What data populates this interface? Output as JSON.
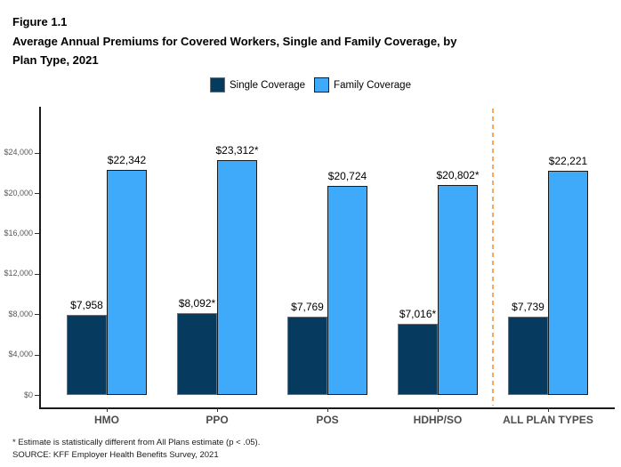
{
  "header": {
    "figure_label": "Figure 1.1",
    "title": "Average Annual Premiums for Covered Workers, Single and Family Coverage, by Plan Type, 2021"
  },
  "legend": {
    "items": [
      {
        "label": "Single Coverage",
        "color": "#063A5E",
        "border": "#6e6f72"
      },
      {
        "label": "Family Coverage",
        "color": "#3FA9FA",
        "border": "#1a1a1a"
      }
    ]
  },
  "chart_data": {
    "type": "bar",
    "title": "Average Annual Premiums for Covered Workers, Single and Family Coverage, by Plan Type, 2021",
    "categories": [
      "HMO",
      "PPO",
      "POS",
      "HDHP/SO",
      "ALL PLAN TYPES"
    ],
    "series": [
      {
        "name": "Single Coverage",
        "color": "#063A5E",
        "border": "#6e6f72",
        "values": [
          7958,
          8092,
          7769,
          7016,
          7739
        ],
        "labels": [
          "$7,958",
          "$8,092*",
          "$7,769",
          "$7,016*",
          "$7,739"
        ]
      },
      {
        "name": "Family Coverage",
        "color": "#3FA9FA",
        "border": "#1a1a1a",
        "values": [
          22342,
          23312,
          20724,
          20802,
          22221
        ],
        "labels": [
          "$22,342",
          "$23,312*",
          "$20,724",
          "$20,802*",
          "$22,221"
        ]
      }
    ],
    "y_ticks": [
      {
        "value": 0,
        "label": "$0"
      },
      {
        "value": 4000,
        "label": "$4,000"
      },
      {
        "value": 8000,
        "label": "$8,000"
      },
      {
        "value": 12000,
        "label": "$12,000"
      },
      {
        "value": 16000,
        "label": "$16,000"
      },
      {
        "value": 20000,
        "label": "$20,000"
      },
      {
        "value": 24000,
        "label": "$24,000"
      }
    ],
    "ylim": [
      0,
      28400
    ],
    "grid": false,
    "legend_position": "top",
    "axis_color": "#1a1a1a",
    "separator": {
      "after_category_index": 3,
      "color": "#F9A861",
      "style": "dashed"
    }
  },
  "footnotes": [
    "* Estimate is statistically different from All Plans estimate (p < .05).",
    "SOURCE: KFF Employer Health Benefits Survey, 2021"
  ]
}
